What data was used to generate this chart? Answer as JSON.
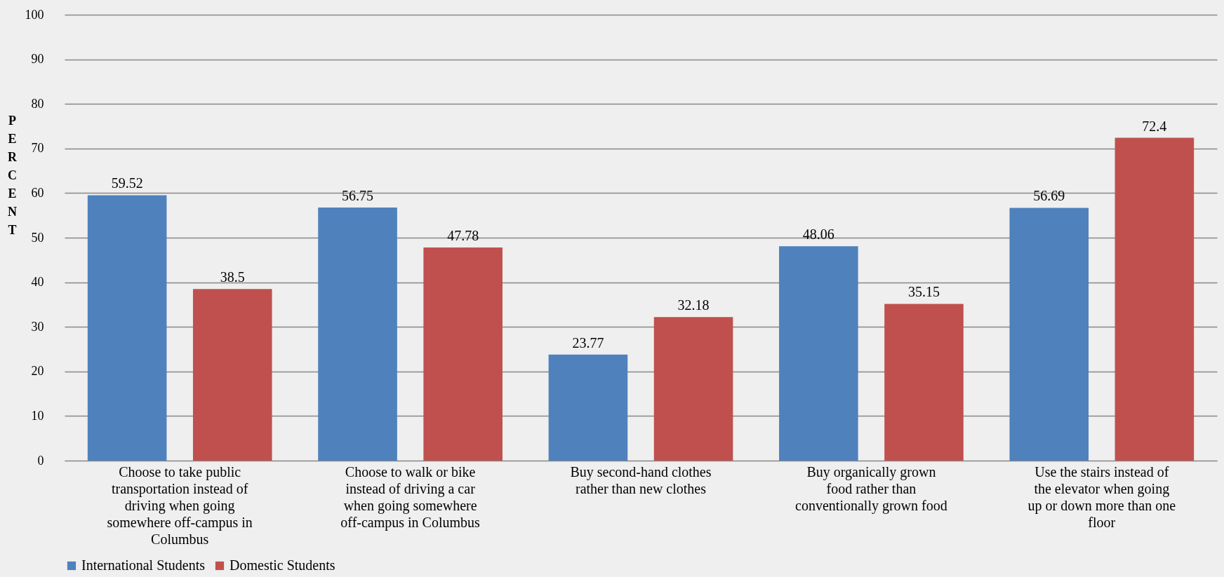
{
  "chart_data": {
    "type": "bar",
    "ylabel": "PERCENT",
    "categories": [
      "Choose to take public transportation instead of driving when going somewhere off-campus in Columbus",
      "Choose to walk or bike instead of driving a car when going somewhere off-campus in Columbus",
      "Buy second-hand clothes rather than new clothes",
      "Buy organically grown food rather than conventionally grown food",
      "Use the stairs instead of the elevator when going up or down more than one floor"
    ],
    "series": [
      {
        "name": "International Students",
        "color": "#4f81bd",
        "values": [
          59.52,
          56.75,
          23.77,
          48.06,
          56.69
        ]
      },
      {
        "name": "Domestic Students",
        "color": "#c0504d",
        "values": [
          38.5,
          47.78,
          32.18,
          35.15,
          72.4
        ]
      }
    ],
    "ylim": [
      0,
      100
    ],
    "yticks": [
      0,
      10,
      20,
      30,
      40,
      50,
      60,
      70,
      80,
      90,
      100
    ],
    "grid": "y",
    "legend": "bottom",
    "data_labels": true
  }
}
